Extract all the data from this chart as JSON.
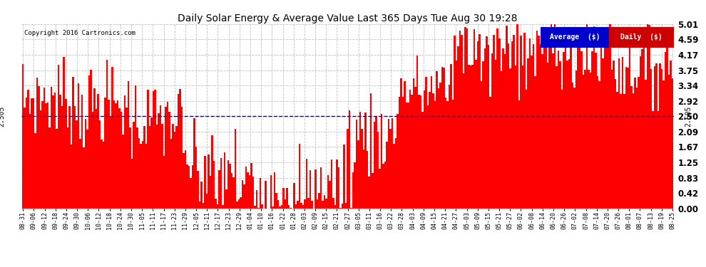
{
  "title": "Daily Solar Energy & Average Value Last 365 Days Tue Aug 30 19:28",
  "copyright": "Copyright 2016 Cartronics.com",
  "average_value": 2.505,
  "avg_label": "2.505",
  "ymin": 0.0,
  "ymax": 5.01,
  "yticks": [
    0.0,
    0.42,
    0.83,
    1.25,
    1.67,
    2.09,
    2.5,
    2.92,
    3.34,
    3.75,
    4.17,
    4.59,
    5.01
  ],
  "bar_color": "#ff0000",
  "avg_line_color": "#0000cc",
  "background_color": "#ffffff",
  "grid_color": "#bbbbbb",
  "legend_avg_bg": "#0000cc",
  "legend_daily_bg": "#cc0000",
  "legend_text_color": "#ffffff",
  "xtick_labels": [
    "08-31",
    "09-06",
    "09-12",
    "09-18",
    "09-24",
    "09-30",
    "10-06",
    "10-12",
    "10-18",
    "10-24",
    "10-30",
    "11-05",
    "11-11",
    "11-17",
    "11-23",
    "11-29",
    "12-05",
    "12-11",
    "12-17",
    "12-23",
    "12-29",
    "01-04",
    "01-10",
    "01-16",
    "01-22",
    "01-28",
    "02-03",
    "02-09",
    "02-15",
    "02-21",
    "02-27",
    "03-05",
    "03-11",
    "03-16",
    "03-22",
    "03-28",
    "04-03",
    "04-09",
    "04-15",
    "04-21",
    "04-27",
    "05-03",
    "05-09",
    "05-15",
    "05-21",
    "05-27",
    "06-02",
    "06-08",
    "06-14",
    "06-20",
    "06-26",
    "07-02",
    "07-08",
    "07-14",
    "07-20",
    "07-26",
    "08-01",
    "08-07",
    "08-13",
    "08-19",
    "08-25"
  ],
  "n_days": 365
}
